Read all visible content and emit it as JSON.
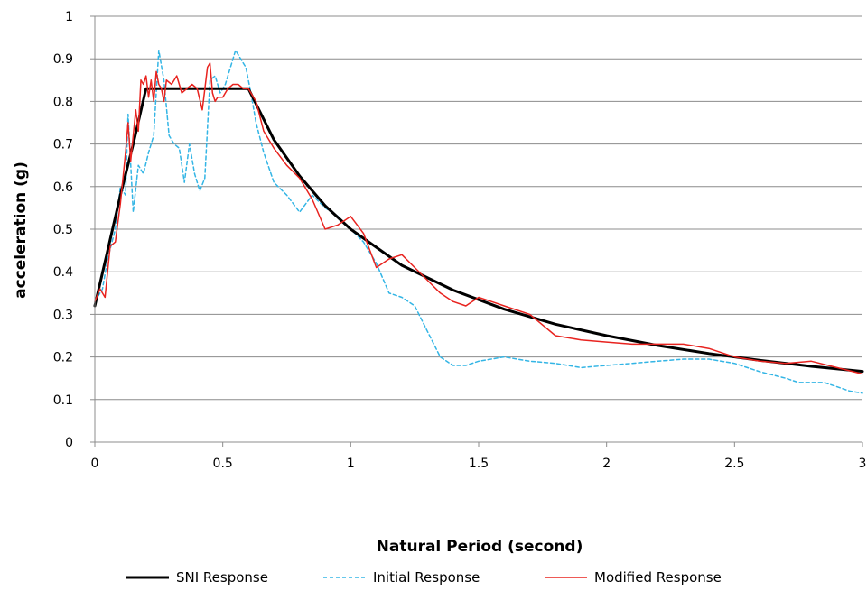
{
  "chart_data": {
    "type": "line",
    "title": "",
    "xlabel": "Natural Period (second)",
    "ylabel": "acceleration (g)",
    "xlim": [
      0,
      3
    ],
    "ylim": [
      0,
      1
    ],
    "x_ticks": [
      0,
      0.5,
      1,
      1.5,
      2,
      2.5,
      3
    ],
    "x_tick_labels": [
      "0",
      "0.5",
      "1",
      "1.5",
      "2",
      "2.5",
      "3"
    ],
    "y_ticks": [
      0,
      0.1,
      0.2,
      0.3,
      0.4,
      0.5,
      0.6,
      0.7,
      0.8,
      0.9,
      1
    ],
    "y_tick_labels": [
      "0",
      "0.1",
      "0.2",
      "0.3",
      "0.4",
      "0.5",
      "0.6",
      "0.7",
      "0.8",
      "0.9",
      "1"
    ],
    "grid": "horizontal",
    "legend_position": "bottom",
    "series": [
      {
        "name": "SNI Response",
        "color": "#000000",
        "style": "solid-thick",
        "x": [
          0,
          0.05,
          0.1,
          0.15,
          0.2,
          0.25,
          0.3,
          0.4,
          0.5,
          0.6,
          0.7,
          0.8,
          0.9,
          1.0,
          1.2,
          1.4,
          1.6,
          1.8,
          2.0,
          2.2,
          2.4,
          2.6,
          2.8,
          3.0
        ],
        "values": [
          0.32,
          0.45,
          0.58,
          0.7,
          0.83,
          0.83,
          0.83,
          0.83,
          0.83,
          0.83,
          0.71,
          0.625,
          0.555,
          0.5,
          0.415,
          0.357,
          0.312,
          0.277,
          0.25,
          0.227,
          0.208,
          0.192,
          0.178,
          0.166
        ]
      },
      {
        "name": "Initial Response",
        "color": "#33b5e5",
        "style": "dashed",
        "x": [
          0,
          0.03,
          0.05,
          0.08,
          0.1,
          0.12,
          0.13,
          0.15,
          0.17,
          0.19,
          0.21,
          0.23,
          0.25,
          0.27,
          0.29,
          0.31,
          0.33,
          0.35,
          0.37,
          0.39,
          0.41,
          0.43,
          0.45,
          0.47,
          0.49,
          0.51,
          0.53,
          0.55,
          0.57,
          0.59,
          0.61,
          0.63,
          0.66,
          0.7,
          0.75,
          0.8,
          0.85,
          0.9,
          0.95,
          1.0,
          1.05,
          1.1,
          1.15,
          1.2,
          1.25,
          1.3,
          1.35,
          1.4,
          1.45,
          1.5,
          1.6,
          1.7,
          1.8,
          1.9,
          2.0,
          2.1,
          2.2,
          2.3,
          2.4,
          2.5,
          2.6,
          2.7,
          2.75,
          2.8,
          2.85,
          2.9,
          2.95,
          3.0
        ],
        "values": [
          0.33,
          0.36,
          0.43,
          0.5,
          0.6,
          0.58,
          0.77,
          0.54,
          0.65,
          0.63,
          0.68,
          0.72,
          0.92,
          0.85,
          0.72,
          0.7,
          0.69,
          0.61,
          0.7,
          0.63,
          0.59,
          0.62,
          0.85,
          0.86,
          0.82,
          0.84,
          0.88,
          0.92,
          0.9,
          0.88,
          0.82,
          0.75,
          0.68,
          0.61,
          0.58,
          0.54,
          0.58,
          0.55,
          0.53,
          0.5,
          0.47,
          0.42,
          0.35,
          0.34,
          0.32,
          0.26,
          0.2,
          0.18,
          0.18,
          0.19,
          0.2,
          0.19,
          0.185,
          0.175,
          0.18,
          0.185,
          0.19,
          0.195,
          0.195,
          0.185,
          0.165,
          0.15,
          0.14,
          0.14,
          0.14,
          0.13,
          0.12,
          0.115
        ]
      },
      {
        "name": "Modified Response",
        "color": "#e8231f",
        "style": "solid",
        "x": [
          0,
          0.02,
          0.04,
          0.06,
          0.08,
          0.1,
          0.12,
          0.13,
          0.14,
          0.15,
          0.16,
          0.17,
          0.18,
          0.19,
          0.2,
          0.21,
          0.22,
          0.23,
          0.24,
          0.25,
          0.26,
          0.27,
          0.28,
          0.3,
          0.32,
          0.34,
          0.36,
          0.38,
          0.4,
          0.42,
          0.44,
          0.45,
          0.46,
          0.47,
          0.48,
          0.5,
          0.52,
          0.54,
          0.56,
          0.58,
          0.6,
          0.63,
          0.66,
          0.7,
          0.75,
          0.8,
          0.85,
          0.9,
          0.95,
          1.0,
          1.05,
          1.1,
          1.15,
          1.2,
          1.25,
          1.3,
          1.35,
          1.4,
          1.45,
          1.5,
          1.55,
          1.6,
          1.7,
          1.8,
          1.9,
          2.0,
          2.1,
          2.2,
          2.3,
          2.4,
          2.5,
          2.6,
          2.7,
          2.8,
          2.9,
          3.0
        ],
        "values": [
          0.33,
          0.36,
          0.34,
          0.46,
          0.47,
          0.56,
          0.68,
          0.75,
          0.66,
          0.72,
          0.78,
          0.73,
          0.85,
          0.84,
          0.86,
          0.81,
          0.85,
          0.8,
          0.87,
          0.84,
          0.83,
          0.8,
          0.85,
          0.84,
          0.86,
          0.82,
          0.83,
          0.84,
          0.83,
          0.78,
          0.88,
          0.89,
          0.82,
          0.8,
          0.81,
          0.81,
          0.83,
          0.84,
          0.84,
          0.83,
          0.83,
          0.8,
          0.73,
          0.69,
          0.65,
          0.62,
          0.57,
          0.5,
          0.51,
          0.53,
          0.49,
          0.41,
          0.43,
          0.44,
          0.41,
          0.38,
          0.35,
          0.33,
          0.32,
          0.34,
          0.33,
          0.32,
          0.3,
          0.25,
          0.24,
          0.235,
          0.23,
          0.23,
          0.23,
          0.22,
          0.2,
          0.19,
          0.185,
          0.19,
          0.175,
          0.16
        ]
      }
    ]
  }
}
